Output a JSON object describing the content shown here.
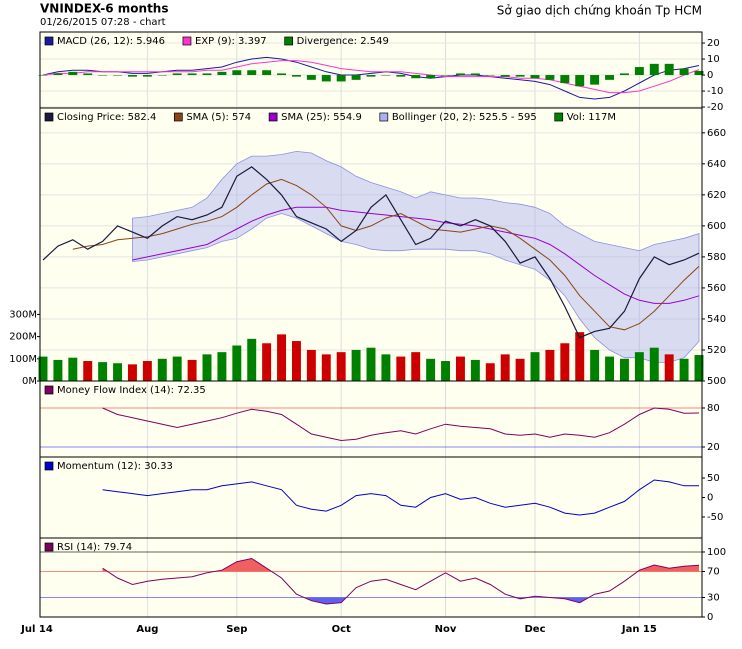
{
  "header": {
    "title": "VNINDEX-6 months",
    "subtitle": "01/26/2015 07:28 -  chart",
    "source": "Sở giao dịch chứng khoán Tp HCM"
  },
  "chart_data": [
    {
      "type": "line",
      "ylim": [
        -20.6,
        26.9
      ],
      "yticks": [
        -20,
        -10,
        0,
        10,
        20
      ],
      "grid": true,
      "series": [
        {
          "name": "MACD (26, 12): 5.946",
          "kind": "line",
          "color": "#1a1aa0",
          "values": [
            0,
            2,
            3,
            3,
            2,
            2,
            1,
            1,
            2,
            3,
            3,
            4,
            5,
            8,
            10,
            11,
            10,
            8,
            5,
            2,
            0,
            0,
            1,
            2,
            1,
            -1,
            -2,
            -1,
            0,
            0,
            -1,
            -2,
            -3,
            -4,
            -6,
            -10,
            -14,
            -15,
            -14,
            -10,
            -5,
            0,
            3,
            4,
            5.946
          ]
        },
        {
          "name": "EXP (9): 3.397",
          "kind": "line",
          "color": "#ff33cc",
          "values": [
            0,
            1,
            1,
            2,
            2,
            2,
            2,
            2,
            2,
            2,
            2,
            3,
            3,
            5,
            7,
            8,
            9,
            9,
            8,
            6,
            4,
            3,
            2,
            2,
            2,
            1,
            0,
            -1,
            -1,
            -1,
            -1,
            -1,
            -2,
            -2,
            -3,
            -5,
            -7,
            -9,
            -11,
            -11,
            -10,
            -7,
            -4,
            0,
            3.397
          ]
        },
        {
          "name": "Divergence: 2.549",
          "kind": "bar",
          "color": "#008000",
          "values": [
            0,
            1,
            2,
            1,
            0,
            0,
            -1,
            -1,
            0,
            1,
            1,
            1,
            2,
            3,
            3,
            3,
            1,
            -1,
            -3,
            -4,
            -4,
            -3,
            -1,
            0,
            -1,
            -2,
            -2,
            0,
            1,
            1,
            0,
            -1,
            -1,
            -2,
            -3,
            -5,
            -7,
            -6,
            -3,
            1,
            5,
            7,
            7,
            4,
            2.549
          ]
        }
      ]
    },
    {
      "type": "line",
      "ylim": [
        500,
        676
      ],
      "yticks": [
        500,
        520,
        540,
        560,
        580,
        600,
        620,
        640,
        660
      ],
      "grid": true,
      "y2lim": [
        0,
        1230
      ],
      "y2ticks": [
        {
          "value": 0,
          "label": "0M"
        },
        {
          "value": 100,
          "label": "100M"
        },
        {
          "value": 200,
          "label": "200M"
        },
        {
          "value": 300,
          "label": "300M"
        }
      ],
      "categories": [
        "Jul 14",
        null,
        null,
        null,
        null,
        null,
        null,
        "Aug",
        null,
        null,
        null,
        null,
        null,
        "Sep",
        null,
        null,
        null,
        null,
        null,
        null,
        "Oct",
        null,
        null,
        null,
        null,
        null,
        null,
        "Nov",
        null,
        null,
        null,
        null,
        null,
        "Dec",
        null,
        null,
        null,
        null,
        null,
        null,
        "Jan 15",
        null,
        null,
        null,
        null
      ],
      "up_color": "#008000",
      "down_color": "#cc0000",
      "series": [
        {
          "name": "Bollinger (20, 2): 525.5 - 595",
          "kind": "band",
          "color": "#aab0f0",
          "values": [
            null,
            null,
            null,
            null,
            null,
            null,
            605,
            606,
            608,
            610,
            612,
            618,
            630,
            640,
            645,
            645,
            646,
            648,
            647,
            642,
            638,
            632,
            628,
            625,
            622,
            618,
            622,
            620,
            618,
            618,
            617,
            615,
            614,
            612,
            608,
            600,
            595,
            590,
            588,
            586,
            584,
            588,
            590,
            592,
            595
          ],
          "lower": [
            null,
            null,
            null,
            null,
            null,
            null,
            577,
            578,
            580,
            582,
            584,
            586,
            590,
            592,
            598,
            605,
            608,
            605,
            600,
            595,
            590,
            588,
            585,
            584,
            584,
            585,
            585,
            585,
            584,
            584,
            582,
            578,
            575,
            572,
            565,
            555,
            540,
            528,
            520,
            515,
            515,
            512,
            512,
            515,
            525.5
          ]
        },
        {
          "name": "Vol: 117M",
          "kind": "volume",
          "axis": "y2",
          "color": "#008000",
          "values": [
            110,
            95,
            105,
            90,
            85,
            80,
            75,
            90,
            100,
            110,
            95,
            120,
            130,
            160,
            190,
            170,
            210,
            180,
            140,
            120,
            130,
            140,
            150,
            120,
            110,
            130,
            100,
            90,
            110,
            95,
            80,
            120,
            100,
            130,
            140,
            170,
            220,
            140,
            110,
            100,
            130,
            150,
            120,
            100,
            117
          ]
        },
        {
          "name": "SMA (25): 554.9",
          "kind": "line",
          "color": "#9900cc",
          "values": [
            null,
            null,
            null,
            null,
            null,
            null,
            578,
            580,
            582,
            584,
            586,
            588,
            593,
            598,
            603,
            607,
            610,
            612,
            612,
            612,
            610,
            609,
            608,
            607,
            606,
            605,
            604,
            602,
            601,
            600,
            598,
            596,
            594,
            592,
            588,
            582,
            575,
            568,
            562,
            556,
            552,
            550,
            550,
            552,
            554.9
          ]
        },
        {
          "name": "SMA (5): 574",
          "kind": "line",
          "color": "#8b4513",
          "values": [
            null,
            null,
            585,
            587,
            588,
            591,
            592,
            593,
            595,
            598,
            601,
            603,
            606,
            612,
            620,
            627,
            630,
            626,
            620,
            612,
            600,
            597,
            600,
            605,
            608,
            603,
            598,
            597,
            596,
            598,
            600,
            598,
            592,
            585,
            578,
            568,
            555,
            545,
            535,
            533,
            537,
            545,
            555,
            565,
            574
          ]
        },
        {
          "name": "Closing Price: 582.4",
          "kind": "close",
          "color": "#1a1a40",
          "values": [
            578,
            587,
            591,
            585,
            590,
            600,
            596,
            592,
            600,
            606,
            604,
            607,
            612,
            632,
            638,
            630,
            620,
            606,
            602,
            598,
            590,
            597,
            612,
            620,
            604,
            588,
            592,
            603,
            600,
            604,
            600,
            590,
            576,
            580,
            566,
            548,
            528,
            532,
            534,
            545,
            566,
            580,
            575,
            578,
            582.4
          ]
        }
      ]
    },
    {
      "type": "line",
      "ylim": [
        4.6,
        121.5
      ],
      "yticks": [
        20,
        80
      ],
      "tick_colors": [
        "#3333ff",
        "#ff3333"
      ],
      "grid": false,
      "series": [
        {
          "name": "Money Flow Index (14): 72.35",
          "kind": "line",
          "color": "#800060",
          "values": [
            null,
            null,
            null,
            null,
            80,
            70,
            65,
            60,
            55,
            50,
            55,
            60,
            65,
            72,
            78,
            75,
            70,
            55,
            40,
            35,
            30,
            32,
            38,
            42,
            45,
            40,
            48,
            55,
            52,
            50,
            48,
            40,
            38,
            40,
            35,
            40,
            38,
            35,
            42,
            55,
            70,
            80,
            78,
            72,
            72.35
          ]
        }
      ]
    },
    {
      "type": "line",
      "ylim": [
        -104,
        104
      ],
      "yticks": [
        -50,
        0,
        50
      ],
      "grid": false,
      "series": [
        {
          "name": "Momentum (12): 30.33",
          "kind": "line",
          "color": "#0000cc",
          "values": [
            null,
            null,
            null,
            null,
            20,
            15,
            10,
            5,
            10,
            15,
            20,
            20,
            30,
            35,
            40,
            30,
            20,
            -20,
            -30,
            -35,
            -20,
            5,
            10,
            5,
            -20,
            -25,
            0,
            10,
            -5,
            0,
            -15,
            -25,
            -20,
            -15,
            -25,
            -40,
            -45,
            -40,
            -25,
            -10,
            20,
            45,
            40,
            30,
            30.33
          ]
        }
      ]
    },
    {
      "type": "line",
      "ylim": [
        0,
        121.5
      ],
      "yticks": [
        0,
        30,
        70,
        100
      ],
      "tick_colors": [
        "#000000",
        "#3333ff",
        "#ff3333",
        "#000000"
      ],
      "grid": false,
      "fills": {
        "above": 70,
        "above_color": "#f06060",
        "below": 30,
        "below_color": "#6060f0"
      },
      "series": [
        {
          "name": "RSI (14): 79.74",
          "kind": "line",
          "color": "#800060",
          "values": [
            null,
            null,
            null,
            null,
            75,
            60,
            50,
            55,
            58,
            60,
            62,
            68,
            72,
            85,
            90,
            75,
            60,
            35,
            25,
            20,
            22,
            45,
            55,
            58,
            50,
            42,
            55,
            68,
            55,
            60,
            50,
            35,
            28,
            32,
            30,
            28,
            22,
            35,
            40,
            55,
            72,
            80,
            75,
            78,
            79.74
          ]
        }
      ]
    }
  ]
}
